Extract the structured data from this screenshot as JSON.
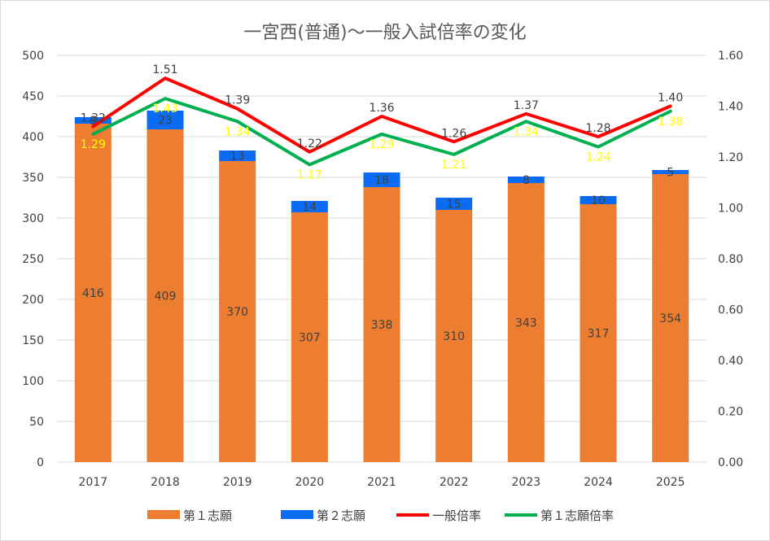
{
  "chart_data": {
    "type": "bar",
    "title": "一宮西(普通)〜一般入試倍率の変化",
    "categories": [
      "2017",
      "2018",
      "2019",
      "2020",
      "2021",
      "2022",
      "2023",
      "2024",
      "2025"
    ],
    "series": [
      {
        "name": "第１志願",
        "kind": "bar",
        "axis": "left",
        "color": "#ed7d31",
        "values": [
          416,
          409,
          370,
          307,
          338,
          310,
          343,
          317,
          354
        ]
      },
      {
        "name": "第２志願",
        "kind": "bar",
        "axis": "left",
        "color": "#0a6cf5",
        "values": [
          8,
          23,
          13,
          14,
          18,
          15,
          8,
          10,
          5
        ]
      },
      {
        "name": "一般倍率",
        "kind": "line",
        "axis": "right",
        "color": "#ff0000",
        "values": [
          1.32,
          1.51,
          1.39,
          1.22,
          1.36,
          1.26,
          1.37,
          1.28,
          1.4
        ]
      },
      {
        "name": "第１志願倍率",
        "kind": "line",
        "axis": "right",
        "color": "#00b050",
        "values": [
          1.29,
          1.43,
          1.34,
          1.17,
          1.29,
          1.21,
          1.34,
          1.24,
          1.38
        ]
      }
    ],
    "y_left": {
      "min": 0,
      "max": 500,
      "ticks": [
        "0",
        "50",
        "100",
        "150",
        "200",
        "250",
        "300",
        "350",
        "400",
        "450",
        "500"
      ]
    },
    "y_right": {
      "min": 0,
      "max": 1.6,
      "ticks": [
        "0.00",
        "0.20",
        "0.40",
        "0.60",
        "0.80",
        "1.00",
        "1.20",
        "1.40",
        "1.60"
      ]
    },
    "grid": true,
    "legend": "bottom"
  }
}
